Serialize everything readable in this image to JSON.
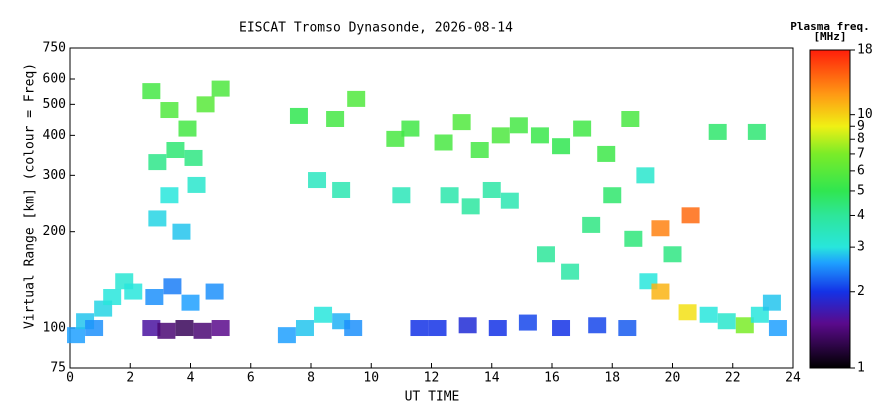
{
  "chart_data": {
    "type": "scatter",
    "title": "EISCAT Tromso Dynasonde, 2026-08-14",
    "xlabel": "UT TIME",
    "ylabel": "Virtual Range [km] (colour = Freq)",
    "colorbar_title": "Plasma freq.",
    "colorbar_unit": "[MHz]",
    "xlim": [
      0,
      24
    ],
    "xticks": [
      0,
      2,
      4,
      6,
      8,
      10,
      12,
      14,
      16,
      18,
      20,
      22,
      24
    ],
    "ylim": [
      75,
      750
    ],
    "yticks": [
      75,
      100,
      200,
      300,
      400,
      500,
      600,
      750
    ],
    "ylog": true,
    "clim": [
      1,
      18
    ],
    "cticks": [
      1,
      2,
      3,
      4,
      5,
      6,
      7,
      8,
      9,
      10,
      18
    ],
    "clog": true,
    "colormap": [
      {
        "value": 1,
        "color": "#000000"
      },
      {
        "value": 1.5,
        "color": "#5a0a8c"
      },
      {
        "value": 2,
        "color": "#1432e6"
      },
      {
        "value": 2.6,
        "color": "#1ea0ff"
      },
      {
        "value": 3,
        "color": "#28e6dc"
      },
      {
        "value": 4,
        "color": "#2ee69a"
      },
      {
        "value": 5,
        "color": "#30e650"
      },
      {
        "value": 7,
        "color": "#7aec28"
      },
      {
        "value": 9,
        "color": "#f0f014"
      },
      {
        "value": 12,
        "color": "#ff9a14"
      },
      {
        "value": 18,
        "color": "#ff1e0a"
      }
    ],
    "x": [
      0.2,
      0.5,
      0.8,
      1.1,
      1.4,
      1.8,
      2.1,
      2.7,
      3.2,
      3.8,
      4.4,
      5.0,
      2.8,
      3.4,
      4.0,
      4.8,
      2.9,
      3.3,
      3.7,
      4.2,
      2.9,
      3.5,
      4.1,
      2.7,
      3.3,
      3.9,
      4.5,
      5.0,
      7.2,
      7.8,
      8.4,
      9.0,
      9.4,
      8.2,
      9.0,
      8.8,
      9.5,
      7.6,
      10.8,
      11.3,
      11.0,
      11.6,
      12.4,
      13.0,
      13.6,
      14.3,
      14.9,
      12.6,
      13.3,
      14.0,
      14.6,
      12.2,
      13.2,
      14.2,
      15.2,
      16.3,
      17.5,
      18.5,
      15.6,
      16.3,
      17.0,
      17.8,
      18.6,
      15.8,
      16.6,
      17.3,
      18.0,
      18.7,
      19.2,
      19.1,
      19.6,
      19.6,
      20.0,
      20.5,
      20.6,
      21.2,
      21.8,
      22.4,
      22.9,
      23.3,
      23.5,
      21.5,
      22.8
    ],
    "y": [
      95,
      105,
      100,
      115,
      125,
      140,
      130,
      100,
      98,
      100,
      98,
      100,
      125,
      135,
      120,
      130,
      220,
      260,
      200,
      280,
      330,
      360,
      340,
      550,
      480,
      420,
      500,
      560,
      95,
      100,
      110,
      105,
      100,
      290,
      270,
      450,
      520,
      460,
      390,
      420,
      260,
      100,
      380,
      440,
      360,
      400,
      430,
      260,
      240,
      270,
      250,
      100,
      102,
      100,
      104,
      100,
      102,
      100,
      400,
      370,
      420,
      350,
      450,
      170,
      150,
      210,
      260,
      190,
      140,
      300,
      130,
      205,
      170,
      112,
      225,
      110,
      105,
      102,
      110,
      120,
      100,
      410,
      410
    ],
    "values": [
      2.6,
      2.8,
      2.5,
      2.9,
      3.0,
      3.1,
      3.0,
      1.6,
      1.4,
      1.3,
      1.4,
      1.5,
      2.5,
      2.4,
      2.6,
      2.5,
      2.9,
      3.0,
      2.8,
      3.2,
      4.2,
      4.5,
      4.3,
      5.5,
      5.8,
      5.5,
      6.0,
      5.7,
      2.6,
      2.8,
      3.0,
      2.7,
      2.5,
      3.4,
      3.6,
      5.5,
      5.8,
      5.0,
      5.6,
      5.4,
      3.5,
      2.0,
      5.6,
      5.8,
      5.5,
      5.7,
      5.5,
      3.7,
      3.9,
      3.8,
      3.6,
      2.0,
      1.9,
      2.0,
      2.1,
      2.0,
      2.1,
      2.2,
      5.2,
      5.0,
      5.4,
      5.3,
      5.6,
      4.0,
      3.8,
      4.3,
      4.6,
      4.4,
      3.0,
      3.2,
      11,
      13,
      4.3,
      9.5,
      14,
      3.0,
      3.2,
      7.0,
      3.0,
      2.8,
      2.6,
      4.6,
      4.5
    ]
  }
}
